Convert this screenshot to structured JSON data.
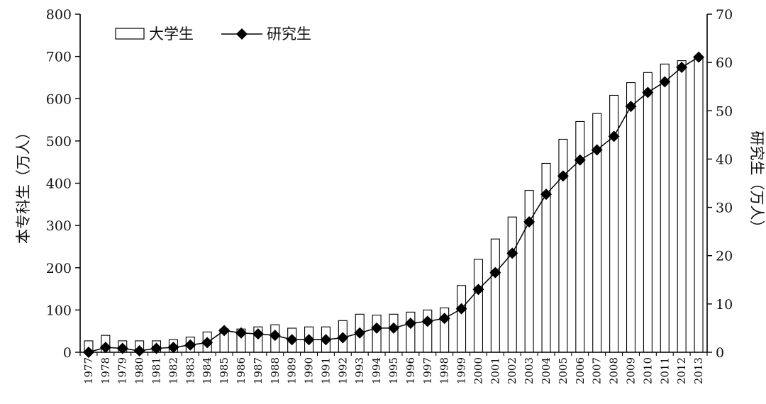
{
  "chart_data": {
    "type": "bar",
    "categories": [
      "1977",
      "1978",
      "1979",
      "1980",
      "1981",
      "1982",
      "1983",
      "1984",
      "1985",
      "1986",
      "1987",
      "1988",
      "1989",
      "1990",
      "1991",
      "1992",
      "1993",
      "1994",
      "1995",
      "1996",
      "1997",
      "1998",
      "1999",
      "2000",
      "2001",
      "2002",
      "2003",
      "2004",
      "2005",
      "2006",
      "2007",
      "2008",
      "2009",
      "2010",
      "2011",
      "2012",
      "2013"
    ],
    "series": [
      {
        "name": "大学生",
        "type": "bar",
        "axis": "left",
        "values": [
          27,
          40,
          27,
          27,
          27,
          30,
          36,
          48,
          55,
          55,
          60,
          65,
          57,
          60,
          60,
          75,
          90,
          88,
          90,
          95,
          100,
          105,
          158,
          220,
          268,
          320,
          383,
          447,
          504,
          546,
          565,
          608,
          638,
          662,
          682,
          690,
          700
        ]
      },
      {
        "name": "研究生",
        "type": "line",
        "axis": "right",
        "marker": "diamond",
        "values": [
          0,
          1,
          0.8,
          0.3,
          0.8,
          1,
          1.5,
          2,
          4.5,
          4,
          3.8,
          3.5,
          2.6,
          2.6,
          2.6,
          3,
          4,
          5,
          5,
          6,
          6.4,
          7,
          9,
          13,
          16.5,
          20.5,
          27,
          32.7,
          36.5,
          39.8,
          41.9,
          44.7,
          50.9,
          53.8,
          56,
          59,
          61.1
        ]
      }
    ],
    "ylabel": "本专科生（万人）",
    "y2label": "研究生（万人）",
    "ylim": [
      0,
      800
    ],
    "y2lim": [
      0,
      70
    ],
    "yticks": [
      "0",
      "100",
      "200",
      "300",
      "400",
      "500",
      "600",
      "700",
      "800"
    ],
    "y2ticks": [
      "0",
      "10",
      "20",
      "30",
      "40",
      "50",
      "60",
      "70"
    ],
    "legend_position": "top-left",
    "grid": false
  }
}
